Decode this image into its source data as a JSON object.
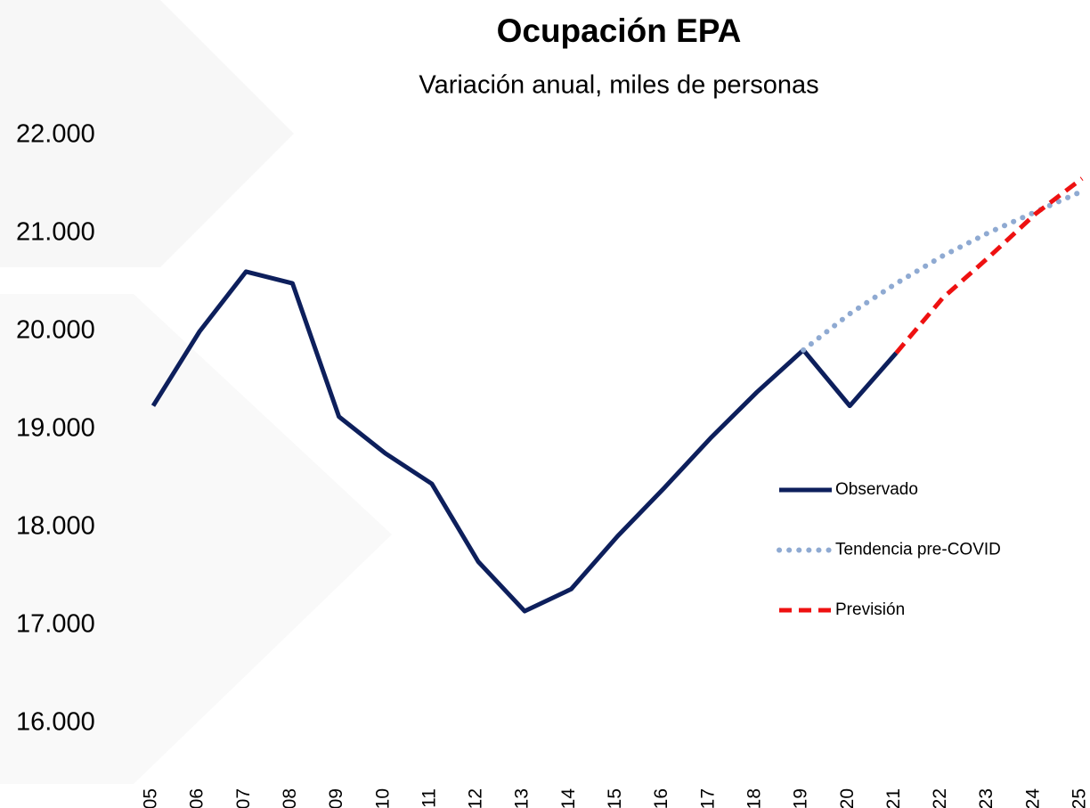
{
  "chart_data": {
    "type": "line",
    "title": "Ocupación EPA",
    "subtitle": "Variación anual, miles de personas",
    "categories": [
      "2005",
      "2006",
      "2007",
      "2008",
      "2009",
      "2010",
      "2011",
      "2012",
      "2013",
      "2014",
      "2015",
      "2016",
      "2017",
      "2018",
      "2019",
      "2020",
      "2021",
      "2022",
      "2023",
      "2024",
      "2025"
    ],
    "series": [
      {
        "name": "Observado",
        "color": "#0d1f5c",
        "style": "solid",
        "values": [
          19240,
          20000,
          20610,
          20490,
          19130,
          18755,
          18445,
          17650,
          17145,
          17370,
          17910,
          18400,
          18910,
          19380,
          19810,
          19240,
          19780,
          null,
          null,
          null,
          null
        ]
      },
      {
        "name": "Tendencia pre-COVID",
        "color": "#8faad2",
        "style": "dotted",
        "values": [
          null,
          null,
          null,
          null,
          null,
          null,
          null,
          null,
          null,
          null,
          null,
          null,
          null,
          null,
          19810,
          20180,
          20490,
          20770,
          21010,
          21220,
          21430
        ]
      },
      {
        "name": "Previsión",
        "color": "#ee1111",
        "style": "dashed",
        "values": [
          null,
          null,
          null,
          null,
          null,
          null,
          null,
          null,
          null,
          null,
          null,
          null,
          null,
          null,
          null,
          null,
          19780,
          20340,
          20760,
          21200,
          21560
        ]
      }
    ],
    "ylim": [
      16000,
      22000
    ],
    "yticks": [
      {
        "value": 16000,
        "label": "16.000"
      },
      {
        "value": 17000,
        "label": "17.000"
      },
      {
        "value": 18000,
        "label": "18.000"
      },
      {
        "value": 19000,
        "label": "19.000"
      },
      {
        "value": 20000,
        "label": "20.000"
      },
      {
        "value": 21000,
        "label": "21.000"
      },
      {
        "value": 22000,
        "label": "22.000"
      }
    ],
    "grid": false,
    "legend": "right"
  }
}
